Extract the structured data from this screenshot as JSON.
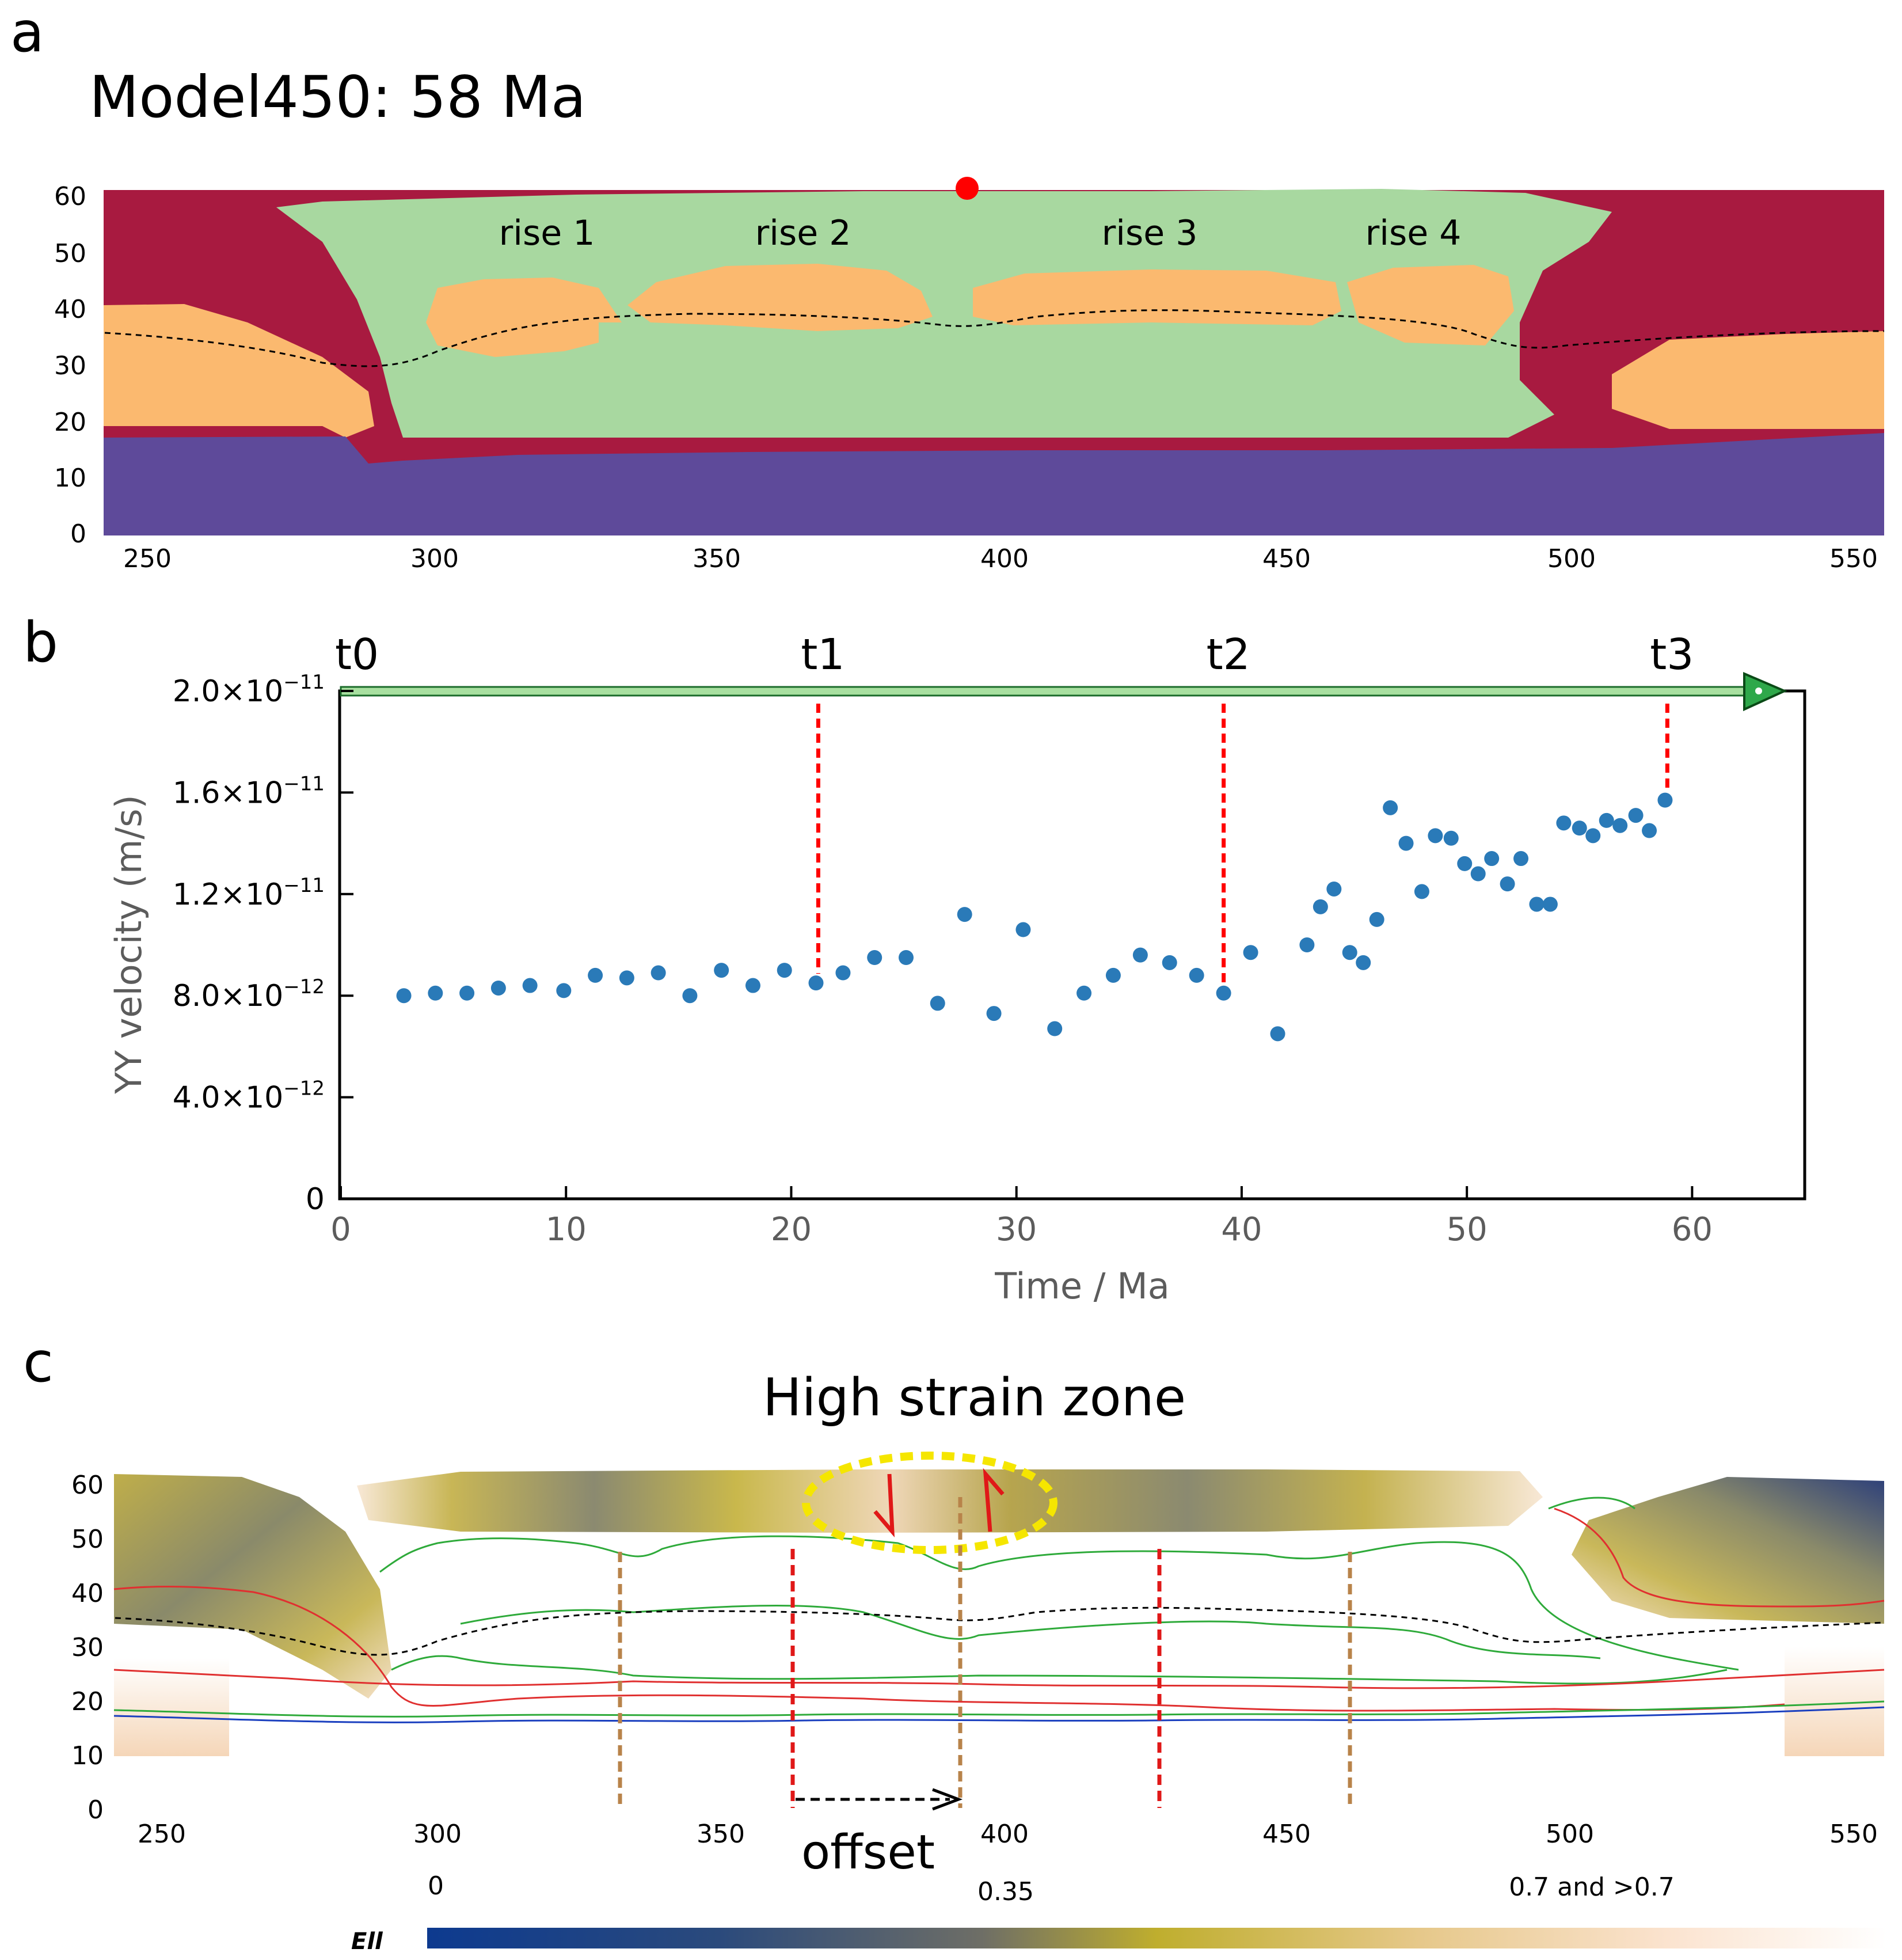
{
  "panels": {
    "a": {
      "letter": "a",
      "title": "Model450: 58 Ma",
      "x_ticks": [
        "250",
        "300",
        "350",
        "400",
        "450",
        "500",
        "550"
      ],
      "y_ticks": [
        "0",
        "10",
        "20",
        "30",
        "40",
        "50",
        "60"
      ],
      "rise_labels": [
        "rise 1",
        "rise 2",
        "rise 3",
        "rise 4"
      ],
      "colors": {
        "green": "#a8d8a0",
        "orange": "#fbb96f",
        "crimson": "#a81a40",
        "purple": "#5e4a9a",
        "marker": "#ff0000"
      }
    },
    "b": {
      "letter": "b",
      "time_markers": [
        "t0",
        "t1",
        "t2",
        "t3"
      ],
      "x_ticks": [
        "0",
        "10",
        "20",
        "30",
        "40",
        "50",
        "60"
      ],
      "y_ticks": [
        "0",
        "4.0×10−12",
        "8.0×10−12",
        "1.2×10−11",
        "1.6×10−11",
        "2.0×10−11"
      ],
      "colors": {
        "points": "#2a7ab8",
        "markers": "#ff0000",
        "arrow": "#2ea84a"
      }
    },
    "c": {
      "letter": "c",
      "title": "High strain zone",
      "x_ticks": [
        "250",
        "300",
        "350",
        "400",
        "450",
        "500",
        "550"
      ],
      "y_ticks": [
        "0",
        "10",
        "20",
        "30",
        "40",
        "50",
        "60"
      ],
      "offset_label": "offset",
      "colorbar": {
        "label": "Ell",
        "min_label": "0",
        "mid_label": "0.35",
        "max_label": "0.7 and >0.7",
        "colors": [
          "#0d3a8f",
          "#2b4a7c",
          "#6e6e66",
          "#bfae2e",
          "#e6c88a",
          "#fbe3cf",
          "#ffffff"
        ]
      }
    }
  },
  "chart_data": [
    {
      "type": "scatter",
      "title": "",
      "xlabel": "Time / Ma",
      "ylabel": "YY velocity  (m/s)",
      "xlim": [
        0,
        65
      ],
      "ylim": [
        0,
        2e-11
      ],
      "time_markers": [
        {
          "label": "t0",
          "time": 0
        },
        {
          "label": "t1",
          "time": 21.2
        },
        {
          "label": "t2",
          "time": 39.2
        },
        {
          "label": "t3",
          "time": 58.9
        }
      ],
      "series": [
        {
          "name": "YY velocity",
          "x": [
            2.8,
            4.2,
            5.6,
            7.0,
            8.4,
            9.9,
            11.3,
            12.7,
            14.1,
            15.5,
            16.9,
            18.3,
            19.7,
            21.1,
            22.3,
            23.7,
            25.1,
            26.5,
            27.7,
            29.0,
            30.3,
            31.7,
            33.0,
            34.3,
            35.5,
            36.8,
            38.0,
            39.2,
            40.4,
            41.6,
            42.9,
            43.5,
            44.1,
            44.8,
            45.4,
            46.0,
            46.6,
            47.3,
            48.0,
            48.6,
            49.3,
            49.9,
            50.5,
            51.1,
            51.8,
            52.4,
            53.1,
            53.7,
            54.3,
            55.0,
            55.6,
            56.2,
            56.8,
            57.5,
            58.1,
            58.8
          ],
          "values": [
            8e-12,
            8.1e-12,
            8.1e-12,
            8.3e-12,
            8.4e-12,
            8.2e-12,
            8.8e-12,
            8.7e-12,
            8.9e-12,
            8e-12,
            9e-12,
            8.4e-12,
            9e-12,
            8.5e-12,
            8.9e-12,
            9.5e-12,
            9.5e-12,
            7.7e-12,
            1.12e-11,
            7.3e-12,
            1.06e-11,
            6.7e-12,
            8.1e-12,
            8.8e-12,
            9.6e-12,
            9.3e-12,
            8.8e-12,
            8.1e-12,
            9.7e-12,
            6.5e-12,
            1e-11,
            1.15e-11,
            1.22e-11,
            9.7e-12,
            9.3e-12,
            1.1e-11,
            1.54e-11,
            1.4e-11,
            1.21e-11,
            1.43e-11,
            1.42e-11,
            1.32e-11,
            1.28e-11,
            1.34e-11,
            1.24e-11,
            1.34e-11,
            1.16e-11,
            1.16e-11,
            1.48e-11,
            1.46e-11,
            1.43e-11,
            1.49e-11,
            1.47e-11,
            1.51e-11,
            1.45e-11,
            1.57e-11
          ]
        }
      ]
    }
  ]
}
